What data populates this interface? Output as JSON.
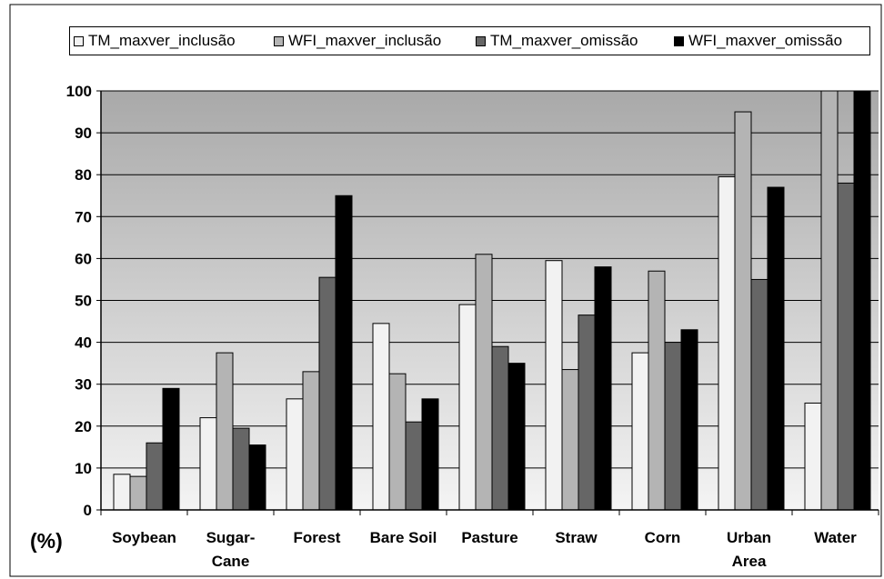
{
  "chart_data": {
    "type": "bar",
    "categories": [
      "Soybean",
      "Sugar-\nCane",
      "Forest",
      "Bare Soil",
      "Pasture",
      "Straw",
      "Corn",
      "Urban\nArea",
      "Water"
    ],
    "series": [
      {
        "name": "TM_maxver_inclusão",
        "color": "#f2f2f2",
        "values": [
          8.5,
          22,
          26.5,
          44.5,
          49,
          59.5,
          37.5,
          79.5,
          25.5
        ]
      },
      {
        "name": "WFI_maxver_inclusão",
        "color": "#b4b4b4",
        "values": [
          8,
          37.5,
          33,
          32.5,
          61,
          33.5,
          57,
          95,
          100
        ]
      },
      {
        "name": "TM_maxver_omissão",
        "color": "#666666",
        "values": [
          16,
          19.5,
          55.5,
          21,
          39,
          46.5,
          40,
          55,
          78
        ]
      },
      {
        "name": "WFI_maxver_omissão",
        "color": "#000000",
        "values": [
          29,
          15.5,
          75,
          26.5,
          35,
          58,
          43,
          77,
          100
        ]
      }
    ],
    "yticks": [
      0,
      10,
      20,
      30,
      40,
      50,
      60,
      70,
      80,
      90,
      100
    ],
    "ylim": [
      0,
      100
    ],
    "ylabel": "(%)",
    "grid": true,
    "legend": "top"
  }
}
